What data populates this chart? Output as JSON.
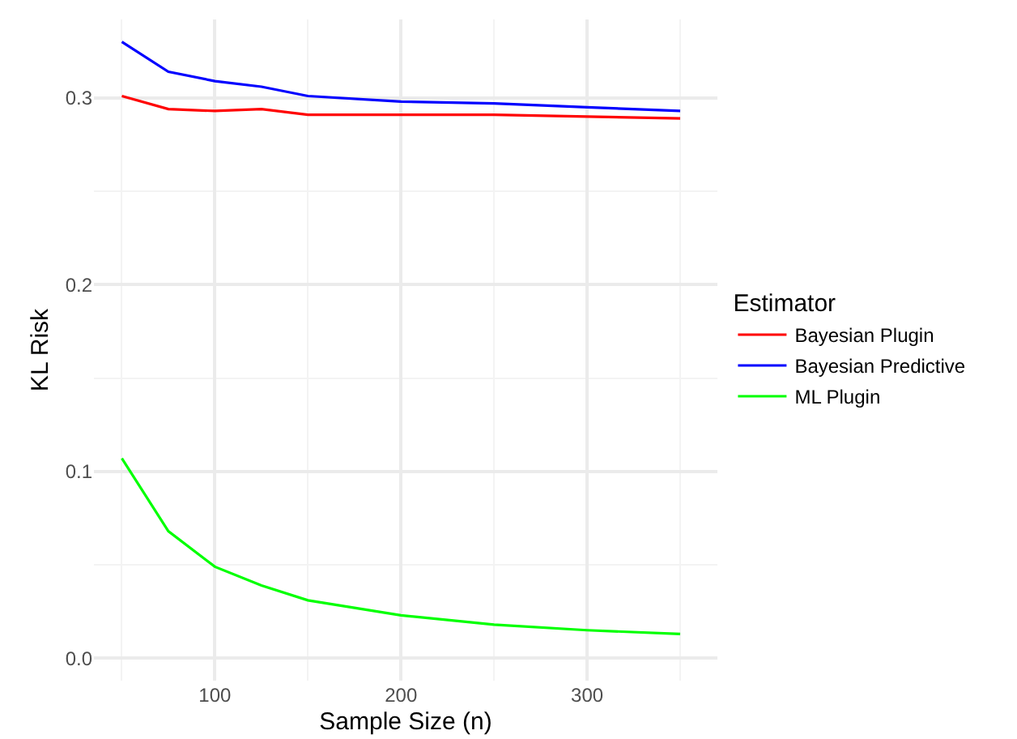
{
  "chart_data": {
    "type": "line",
    "xlabel": "Sample Size (n)",
    "ylabel": "KL Risk",
    "legend_title": "Estimator",
    "x": [
      50,
      75,
      100,
      125,
      150,
      200,
      250,
      300,
      350
    ],
    "series": [
      {
        "name": "Bayesian Plugin",
        "color": "#ff0000",
        "values": [
          0.301,
          0.294,
          0.293,
          0.294,
          0.291,
          0.291,
          0.291,
          0.29,
          0.289
        ]
      },
      {
        "name": "Bayesian Predictive",
        "color": "#0000ff",
        "values": [
          0.33,
          0.314,
          0.309,
          0.306,
          0.301,
          0.298,
          0.297,
          0.295,
          0.293
        ]
      },
      {
        "name": "ML Plugin",
        "color": "#00ff00",
        "values": [
          0.107,
          0.068,
          0.049,
          0.039,
          0.031,
          0.023,
          0.018,
          0.015,
          0.013
        ]
      }
    ],
    "xlim": [
      35,
      370
    ],
    "xticks": [
      100,
      200,
      300
    ],
    "ylim": [
      -0.012,
      0.342
    ],
    "yticks": [
      {
        "value": 0,
        "label": "0.0"
      },
      0.1,
      0.2,
      0.3
    ],
    "grid": true,
    "legend": "right",
    "marker": "none",
    "line_style": "solid"
  }
}
